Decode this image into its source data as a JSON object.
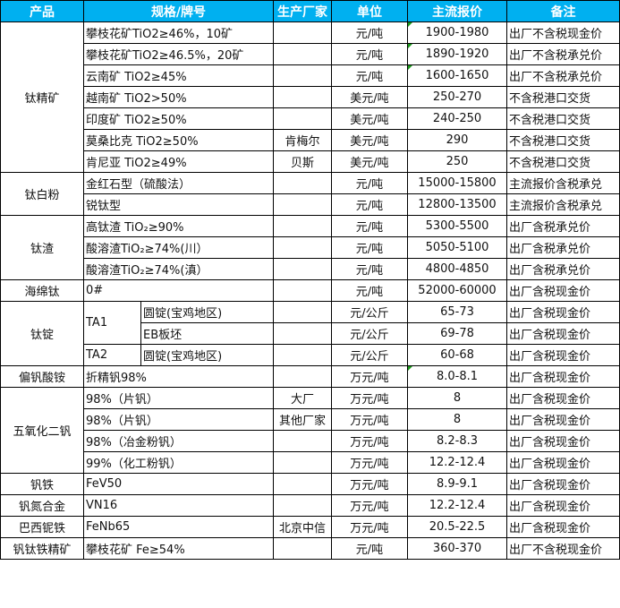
{
  "headers": [
    "产品",
    "规格/牌号",
    "生产厂家",
    "单位",
    "主流报价",
    "备注"
  ],
  "groups": [
    {
      "product": "钛精矿",
      "rows": [
        {
          "spec": "攀枝花矿TiO2≥46%，10矿",
          "maker": "",
          "unit": "元/吨",
          "price": "1900-1980",
          "note": "出厂不含税现金价"
        },
        {
          "spec": "攀枝花矿TiO2≥46.5%，20矿",
          "maker": "",
          "unit": "元/吨",
          "price": "1890-1920",
          "note": "出厂不含税承兑价"
        },
        {
          "spec": "云南矿 TiO2≥45%",
          "maker": "",
          "unit": "元/吨",
          "price": "1600-1650",
          "note": "出厂不含税承兑价"
        },
        {
          "spec": "越南矿 TiO2>50%",
          "maker": "",
          "unit": "美元/吨",
          "price": "250-270",
          "note": "不含税港口交货"
        },
        {
          "spec": "印度矿 TiO2≥50%",
          "maker": "",
          "unit": "美元/吨",
          "price": "240-250",
          "note": "不含税港口交货"
        },
        {
          "spec": "莫桑比克 TiO2≥50%",
          "maker": "肯梅尔",
          "unit": "美元/吨",
          "price": "290",
          "note": "不含税港口交货"
        },
        {
          "spec": "肯尼亚 TiO2≥49%",
          "maker": "贝斯",
          "unit": "美元/吨",
          "price": "250",
          "note": "不含税港口交货"
        }
      ]
    },
    {
      "product": "钛白粉",
      "rows": [
        {
          "spec": "金红石型（硫酸法）",
          "maker": "",
          "unit": "元/吨",
          "price": "15000-15800",
          "note": "主流报价含税承兑"
        },
        {
          "spec": "锐钛型",
          "maker": "",
          "unit": "元/吨",
          "price": "12800-13500",
          "note": "主流报价含税承兑"
        }
      ]
    },
    {
      "product": "钛渣",
      "rows": [
        {
          "spec": "高钛渣 TiO₂≥90%",
          "maker": "",
          "unit": "元/吨",
          "price": "5300-5500",
          "note": "出厂含税承兑价"
        },
        {
          "spec": "酸溶渣TiO₂≥74%(川）",
          "maker": "",
          "unit": "元/吨",
          "price": "5050-5100",
          "note": "出厂含税承兑价"
        },
        {
          "spec": "酸溶渣TiO₂≥74%(滇）",
          "maker": "",
          "unit": "元/吨",
          "price": "4800-4850",
          "note": "出厂含税承兑价"
        }
      ]
    },
    {
      "product": "海绵钛",
      "rows": [
        {
          "spec": "0#",
          "maker": "",
          "unit": "元/吨",
          "price": "52000-60000",
          "note": "出厂含税现金价"
        }
      ]
    },
    {
      "product": "钛锭",
      "rows": [
        {
          "grade": "TA1",
          "grade_span": 2,
          "spec": "圆锭(宝鸡地区)",
          "maker": "",
          "unit": "元/公斤",
          "price": "65-73",
          "note": "出厂含税现金价"
        },
        {
          "spec": "EB板坯",
          "maker": "",
          "unit": "元/公斤",
          "price": "69-78",
          "note": "出厂含税现金价"
        },
        {
          "grade": "TA2",
          "grade_span": 1,
          "spec": "圆锭(宝鸡地区)",
          "maker": "",
          "unit": "元/公斤",
          "price": "60-68",
          "note": "出厂含税现金价"
        }
      ]
    },
    {
      "product": "偏钒酸铵",
      "rows": [
        {
          "spec": "折精钒98%",
          "maker": "",
          "unit": "万元/吨",
          "price": "8.0-8.1",
          "note": "出厂含税现金价"
        }
      ]
    },
    {
      "product": "五氧化二钒",
      "rows": [
        {
          "spec": "98%（片钒）",
          "maker": "大厂",
          "unit": "万元/吨",
          "price": "8",
          "note": "出厂含税现金价"
        },
        {
          "spec": "98%（片钒）",
          "maker": "其他厂家",
          "unit": "万元/吨",
          "price": "8",
          "note": "出厂含税现金价"
        },
        {
          "spec": "98%（冶金粉钒）",
          "maker": "",
          "unit": "万元/吨",
          "price": "8.2-8.3",
          "note": "出厂含税现金价"
        },
        {
          "spec": "99%（化工粉钒）",
          "maker": "",
          "unit": "万元/吨",
          "price": "12.2-12.4",
          "note": "出厂含税现金价"
        }
      ]
    },
    {
      "product": "钒铁",
      "rows": [
        {
          "spec": "FeV50",
          "maker": "",
          "unit": "万元/吨",
          "price": "8.9-9.1",
          "note": "出厂含税现金价"
        }
      ]
    },
    {
      "product": "钒氮合金",
      "rows": [
        {
          "spec": "VN16",
          "maker": "",
          "unit": "万元/吨",
          "price": "12.2-12.4",
          "note": "出厂含税现金价"
        }
      ]
    },
    {
      "product": "巴西铌铁",
      "rows": [
        {
          "spec": "FeNb65",
          "maker": "北京中信",
          "unit": "万元/吨",
          "price": "20.5-22.5",
          "note": "出厂含税现金价"
        }
      ]
    },
    {
      "product": "钒钛铁精矿",
      "rows": [
        {
          "spec": "攀枝花矿 Fe≥54%",
          "maker": "",
          "unit": "元/吨",
          "price": "360-370",
          "note": "出厂不含税现金价"
        }
      ]
    }
  ]
}
